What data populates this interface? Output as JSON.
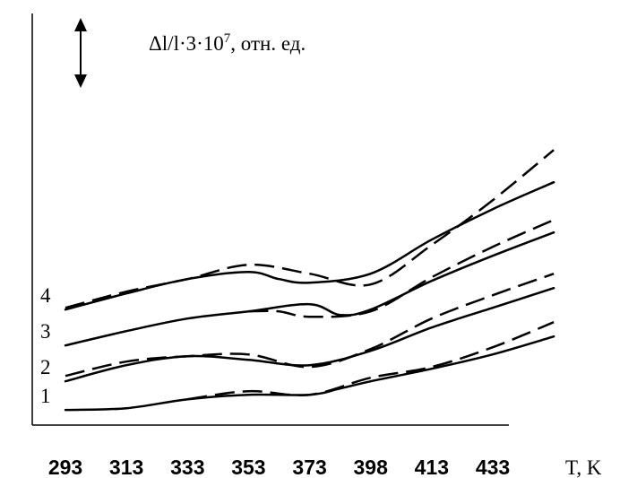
{
  "chart_data": {
    "type": "line",
    "ylabel": "Δl/l·3·10",
    "ylabel_exp": "7",
    "ylabel_unit": ", отн. ед.",
    "xlabel": "T, K",
    "x_ticks": [
      "293",
      "313",
      "333",
      "353",
      "373",
      "398",
      "413",
      "433"
    ],
    "y_ticks": [],
    "grid": false,
    "legend": "none",
    "scale_bar": "double-headed arrow",
    "curve_labels": [
      "1",
      "2",
      "3",
      "4"
    ],
    "series": [
      {
        "curve": "1",
        "solid": [
          [
            0,
            0.95
          ],
          [
            1,
            1.9
          ],
          [
            2,
            6.9
          ],
          [
            3,
            9.4
          ],
          [
            4,
            9.4
          ],
          [
            4.5,
            12.9
          ],
          [
            5,
            16.9
          ],
          [
            6,
            23.9
          ],
          [
            7,
            31.9
          ],
          [
            8,
            41.9
          ]
        ],
        "dashed": [
          [
            2,
            6.9
          ],
          [
            3,
            11.4
          ],
          [
            4,
            9.4
          ],
          [
            5,
            18.9
          ],
          [
            6,
            24.9
          ],
          [
            7,
            35.9
          ],
          [
            8,
            49.9
          ]
        ]
      },
      {
        "curve": "2",
        "solid": [
          [
            0,
            16.9
          ],
          [
            1,
            25.9
          ],
          [
            2,
            30.9
          ],
          [
            3,
            28.9
          ],
          [
            4,
            25.9
          ],
          [
            5,
            33.9
          ],
          [
            6,
            46.9
          ],
          [
            7,
            57.9
          ],
          [
            8,
            68.9
          ]
        ],
        "dashed": [
          [
            0,
            19.9
          ],
          [
            1,
            27.9
          ],
          [
            2,
            30.9
          ],
          [
            3,
            31.9
          ],
          [
            4,
            24.9
          ],
          [
            5,
            34.9
          ],
          [
            6,
            51.9
          ],
          [
            7,
            64.9
          ],
          [
            8,
            76.9
          ]
        ]
      },
      {
        "curve": "3",
        "solid": [
          [
            0,
            36.9
          ],
          [
            1,
            44.9
          ],
          [
            2,
            51.9
          ],
          [
            3,
            55.9
          ],
          [
            4,
            59.9
          ],
          [
            4.5,
            53.9
          ],
          [
            5,
            56.9
          ],
          [
            6,
            72.9
          ],
          [
            7,
            86.9
          ],
          [
            8,
            99.9
          ]
        ],
        "dashed": [
          [
            3,
            55.9
          ],
          [
            3.5,
            55.9
          ],
          [
            4,
            52.9
          ],
          [
            5,
            55.9
          ],
          [
            6,
            74.9
          ],
          [
            7,
            91.9
          ],
          [
            8,
            106.9
          ]
        ]
      },
      {
        "curve": "4",
        "solid": [
          [
            0,
            56.9
          ],
          [
            1,
            65.9
          ],
          [
            2,
            73.9
          ],
          [
            3,
            77.9
          ],
          [
            3.5,
            73.9
          ],
          [
            4,
            71.9
          ],
          [
            5,
            76.9
          ],
          [
            6,
            95.9
          ],
          [
            7,
            112.9
          ],
          [
            8,
            127.9
          ]
        ],
        "dashed": [
          [
            0,
            57.9
          ],
          [
            1,
            66.9
          ],
          [
            2,
            73.9
          ],
          [
            3,
            81.9
          ],
          [
            4,
            76.9
          ],
          [
            5,
            70.9
          ],
          [
            6,
            92.9
          ],
          [
            7,
            117.9
          ],
          [
            8,
            145.9
          ]
        ]
      }
    ]
  }
}
